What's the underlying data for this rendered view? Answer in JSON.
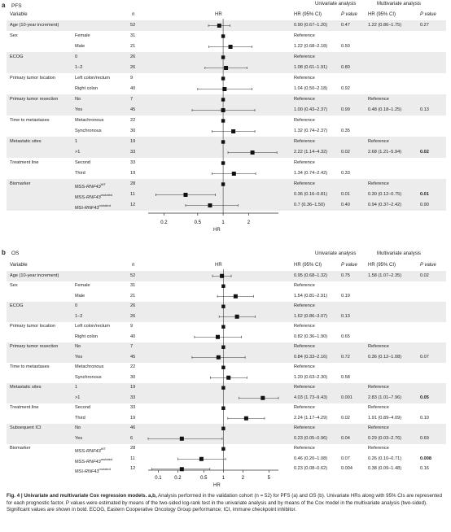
{
  "panel_a": {
    "label": "a",
    "title": "PFS",
    "headers": {
      "variable": "Variable",
      "n": "n",
      "hr": "HR",
      "uni": "Univariate analysis",
      "multi": "Multivariate analysis",
      "hrci": "HR (95% CI)",
      "pval": "P value"
    },
    "axis_label": "HR"
  },
  "panel_b": {
    "label": "b",
    "title": "OS",
    "headers": {
      "variable": "Variable",
      "n": "n",
      "hr": "HR",
      "uni": "Univariate analysis",
      "multi": "Multivariate analysis",
      "hrci": "HR (95% CI)",
      "pval": "P value"
    },
    "axis_label": "HR"
  },
  "caption": {
    "bold_part": "Fig. 4 | Univariate and multivariate Cox regression models. a,b,",
    "text": " Analysis performed in the validation cohort (n = 52) for PFS (a) and OS (b). Univariate HRs along with 95% CIs are represented for each prognostic factor. P values were estimated by means of the two-sided log-rank test in the univariate analysis and by means of the Cox model in the multivariate analysis (two-sided). Significant values are shown in bold. ECOG, Eastern Cooperative Oncology Group performance; ICI, immune checkpoint inhibitor."
  },
  "chart_data": [
    {
      "type": "forest",
      "title": "PFS",
      "xlabel": "HR",
      "scale": "log",
      "xlim": [
        0.13,
        4.5
      ],
      "ticks": [
        0.2,
        0.5,
        1,
        2
      ],
      "rows": [
        {
          "variable": "Age (10-year increment)",
          "level": "",
          "n": "52",
          "hr": 0.9,
          "lo": 0.67,
          "hi": 1.2,
          "uni": "0.90 (0.67–1.20)",
          "up": "0.47",
          "multi": "1.22 (0.86–1.75)",
          "mp": "0.27",
          "shade": true
        },
        {
          "variable": "Sex",
          "level": "Female",
          "n": "31",
          "hr": null,
          "uni": "Reference",
          "up": "",
          "multi": "",
          "mp": "",
          "shade": false
        },
        {
          "variable": "",
          "level": "Male",
          "n": "21",
          "hr": 1.22,
          "lo": 0.68,
          "hi": 2.18,
          "uni": "1.22 (0.68–2.18)",
          "up": "0.50",
          "multi": "",
          "mp": "",
          "shade": false
        },
        {
          "variable": "ECOG",
          "level": "0",
          "n": "26",
          "hr": null,
          "uni": "Reference",
          "up": "",
          "multi": "",
          "mp": "",
          "shade": true
        },
        {
          "variable": "",
          "level": "1–2",
          "n": "26",
          "hr": 1.08,
          "lo": 0.61,
          "hi": 1.91,
          "uni": "1.08 (0.61–1.91)",
          "up": "0.80",
          "multi": "",
          "mp": "",
          "shade": true
        },
        {
          "variable": "Primary tumor location",
          "level": "Left colon/rectum",
          "n": "9",
          "hr": null,
          "uni": "Reference",
          "up": "",
          "multi": "",
          "mp": "",
          "shade": false
        },
        {
          "variable": "",
          "level": "Right colon",
          "n": "40",
          "hr": 1.04,
          "lo": 0.5,
          "hi": 2.18,
          "uni": "1.04 (0.50–2.18)",
          "up": "0.92",
          "multi": "",
          "mp": "",
          "shade": false
        },
        {
          "variable": "Primary tumor resection",
          "level": "No",
          "n": "7",
          "hr": null,
          "uni": "Reference",
          "up": "",
          "multi": "Reference",
          "mp": "",
          "shade": true
        },
        {
          "variable": "",
          "level": "Yes",
          "n": "45",
          "hr": 1.0,
          "lo": 0.43,
          "hi": 2.37,
          "uni": "1.00 (0.43–2.37)",
          "up": "0.99",
          "multi": "0.48 (0.18–1.25)",
          "mp": "0.13",
          "shade": true
        },
        {
          "variable": "Time to metastases",
          "level": "Metachronous",
          "n": "22",
          "hr": null,
          "uni": "Reference",
          "up": "",
          "multi": "",
          "mp": "",
          "shade": false
        },
        {
          "variable": "",
          "level": "Synchronous",
          "n": "30",
          "hr": 1.32,
          "lo": 0.74,
          "hi": 2.37,
          "uni": "1.32 (0.74–2.37)",
          "up": "0.35",
          "multi": "",
          "mp": "",
          "shade": false
        },
        {
          "variable": "Metastatic sites",
          "level": "1",
          "n": "19",
          "hr": null,
          "uni": "Reference",
          "up": "",
          "multi": "Reference",
          "mp": "",
          "shade": true
        },
        {
          "variable": "",
          "level": ">1",
          "n": "33",
          "hr": 2.22,
          "lo": 1.14,
          "hi": 4.32,
          "uni": "2.22 (1.14–4.32)",
          "up": "0.02",
          "multi": "2.68 (1.21–5.94)",
          "mp": "0.02",
          "mpbold": true,
          "shade": true
        },
        {
          "variable": "Treatment line",
          "level": "Second",
          "n": "33",
          "hr": null,
          "uni": "Reference",
          "up": "",
          "multi": "",
          "mp": "",
          "shade": false
        },
        {
          "variable": "",
          "level": "Third",
          "n": "19",
          "hr": 1.34,
          "lo": 0.74,
          "hi": 2.42,
          "uni": "1.34 (0.74–2.42)",
          "up": "0.33",
          "multi": "",
          "mp": "",
          "shade": false
        },
        {
          "variable": "Biomarker",
          "level": "MSS-RNF43WT",
          "n": "28",
          "hr": null,
          "uni": "Reference",
          "up": "",
          "multi": "Reference",
          "mp": "",
          "shade": true
        },
        {
          "variable": "",
          "level": "MSS-RNF43mutated",
          "n": "11",
          "hr": 0.36,
          "lo": 0.16,
          "hi": 0.81,
          "uni": "0.36 (0.16–0.81)",
          "up": "0.01",
          "multi": "0.30 (0.12–0.75)",
          "mp": "0.01",
          "mpbold": true,
          "shade": true
        },
        {
          "variable": "",
          "level": "MSI-RNF43mutated",
          "n": "12",
          "hr": 0.7,
          "lo": 0.36,
          "hi": 1.5,
          "uni": "0.7 (0.36–1.50)",
          "up": "0.40",
          "multi": "0.94 (0.37–2.42)",
          "mp": "0.90",
          "shade": true
        }
      ]
    },
    {
      "type": "forest",
      "title": "OS",
      "xlabel": "HR",
      "scale": "log",
      "xlim": [
        0.07,
        7
      ],
      "ticks": [
        0.1,
        0.2,
        0.5,
        1,
        2,
        5
      ],
      "rows": [
        {
          "variable": "Age (10-year increment)",
          "level": "",
          "n": "52",
          "hr": 0.95,
          "lo": 0.68,
          "hi": 1.32,
          "uni": "0.95 (0.68–1.32)",
          "up": "0.75",
          "multi": "1.58 (1.07–2.35)",
          "mp": "0.02",
          "shade": true
        },
        {
          "variable": "Sex",
          "level": "Female",
          "n": "31",
          "hr": null,
          "uni": "Reference",
          "up": "",
          "multi": "",
          "mp": "",
          "shade": false
        },
        {
          "variable": "",
          "level": "Male",
          "n": "21",
          "hr": 1.54,
          "lo": 0.81,
          "hi": 2.91,
          "uni": "1.54 (0.81–2.91)",
          "up": "0.19",
          "multi": "",
          "mp": "",
          "shade": false
        },
        {
          "variable": "ECOG",
          "level": "0",
          "n": "26",
          "hr": null,
          "uni": "Reference",
          "up": "",
          "multi": "",
          "mp": "",
          "shade": true
        },
        {
          "variable": "",
          "level": "1–2",
          "n": "26",
          "hr": 1.62,
          "lo": 0.86,
          "hi": 3.07,
          "uni": "1.62 (0.86–3.07)",
          "up": "0.13",
          "multi": "",
          "mp": "",
          "shade": true
        },
        {
          "variable": "Primary tumor location",
          "level": "Left colon/rectum",
          "n": "9",
          "hr": null,
          "uni": "Reference",
          "up": "",
          "multi": "",
          "mp": "",
          "shade": false
        },
        {
          "variable": "",
          "level": "Right colon",
          "n": "40",
          "hr": 0.82,
          "lo": 0.36,
          "hi": 1.9,
          "uni": "0.82 (0.36–1.90)",
          "up": "0.65",
          "multi": "",
          "mp": "",
          "shade": false
        },
        {
          "variable": "Primary tumor resection",
          "level": "No",
          "n": "7",
          "hr": null,
          "uni": "Reference",
          "up": "",
          "multi": "Reference",
          "mp": "",
          "shade": true
        },
        {
          "variable": "",
          "level": "Yes",
          "n": "45",
          "hr": 0.84,
          "lo": 0.33,
          "hi": 2.16,
          "uni": "0.84 (0.33–2.16)",
          "up": "0.72",
          "multi": "0.36 (0.12–1.08)",
          "mp": "0.07",
          "shade": true
        },
        {
          "variable": "Time to metastases",
          "level": "Metachronous",
          "n": "22",
          "hr": null,
          "uni": "Reference",
          "up": "",
          "multi": "",
          "mp": "",
          "shade": false
        },
        {
          "variable": "",
          "level": "Synchronous",
          "n": "30",
          "hr": 1.2,
          "lo": 0.63,
          "hi": 2.3,
          "uni": "1.20 (0.63–2.30)",
          "up": "0.58",
          "multi": "",
          "mp": "",
          "shade": false
        },
        {
          "variable": "Metastatic sites",
          "level": "1",
          "n": "19",
          "hr": null,
          "uni": "Reference",
          "up": "",
          "multi": "Reference",
          "mp": "",
          "shade": true
        },
        {
          "variable": "",
          "level": ">1",
          "n": "33",
          "hr": 4.03,
          "lo": 1.73,
          "hi": 9.43,
          "uni": "4.03 (1.73–9.43)",
          "up": "0.001",
          "multi": "2.83 (1.01–7.96)",
          "mp": "0.05",
          "mpbold": true,
          "shade": true
        },
        {
          "variable": "Treatment line",
          "level": "Second",
          "n": "33",
          "hr": null,
          "uni": "Reference",
          "up": "",
          "multi": "Reference",
          "mp": "",
          "shade": false
        },
        {
          "variable": "",
          "level": "Third",
          "n": "19",
          "hr": 2.24,
          "lo": 1.17,
          "hi": 4.29,
          "uni": "2.24 (1.17–4.29)",
          "up": "0.02",
          "multi": "1.91 (0.89–4.09)",
          "mp": "0.10",
          "shade": false
        },
        {
          "variable": "Subsequent ICI",
          "level": "No",
          "n": "46",
          "hr": null,
          "uni": "Reference",
          "up": "",
          "multi": "Reference",
          "mp": "",
          "shade": true
        },
        {
          "variable": "",
          "level": "Yes",
          "n": "6",
          "hr": 0.23,
          "lo": 0.05,
          "hi": 0.96,
          "uni": "0.23 (0.05–0.96)",
          "up": "0.04",
          "multi": "0.29 (0.03–2.76)",
          "mp": "0.69",
          "shade": true
        },
        {
          "variable": "Biomarker",
          "level": "MSS-RNF43WT",
          "n": "28",
          "hr": null,
          "uni": "Reference",
          "up": "",
          "multi": "Reference",
          "mp": "",
          "shade": false
        },
        {
          "variable": "",
          "level": "MSS-RNF43mutated",
          "n": "11",
          "hr": 0.46,
          "lo": 0.2,
          "hi": 1.08,
          "uni": "0.46 (0.20–1.08)",
          "up": "0.07",
          "multi": "0.26 (0.10–0.71)",
          "mp": "0.008",
          "mpbold": true,
          "shade": false
        },
        {
          "variable": "",
          "level": "MSI-RNF43mutated",
          "n": "12",
          "hr": 0.23,
          "lo": 0.08,
          "hi": 0.62,
          "uni": "0.23 (0.08–0.62)",
          "up": "0.004",
          "multi": "0.38 (0.09–1.48)",
          "mp": "0.16",
          "shade": false
        }
      ]
    }
  ]
}
